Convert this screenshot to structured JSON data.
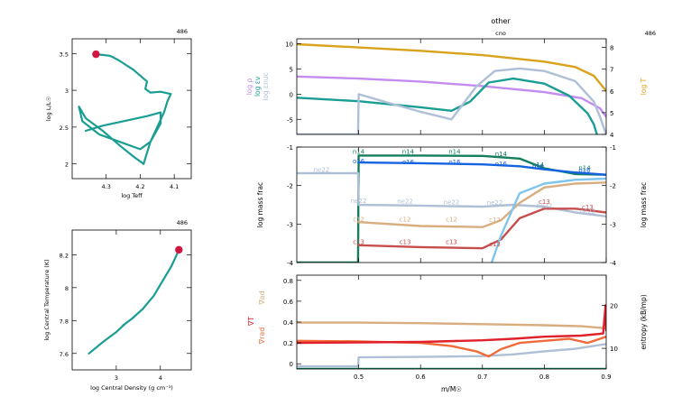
{
  "model_number": "486",
  "colors": {
    "teal": "#1a9e94",
    "marker": "#d0173f",
    "violet": "#c28cf0",
    "gold": "#d9a21b",
    "steelblue": "#aebfd6",
    "darkgreen": "#137f5f",
    "blue": "#1563e0",
    "lightblue": "#7fc5ec",
    "tan": "#d8ad80",
    "brick": "#c84e4e",
    "orange": "#f06a3a",
    "red": "#e0202a",
    "grid": "#888888"
  },
  "chart_data": [
    {
      "id": "hr",
      "type": "line",
      "model_label": "486",
      "xlabel": "log Teff",
      "ylabel": "log L/L☉",
      "xlim": [
        4.4,
        4.05
      ],
      "ylim": [
        1.8,
        3.7
      ],
      "xticks": [
        4.3,
        4.2,
        4.1
      ],
      "yticks": [
        2,
        2.5,
        3,
        3.5
      ],
      "track": [
        [
          4.36,
          2.45
        ],
        [
          4.31,
          2.52
        ],
        [
          4.25,
          2.58
        ],
        [
          4.18,
          2.65
        ],
        [
          4.14,
          2.7
        ],
        [
          4.14,
          2.55
        ],
        [
          4.17,
          2.3
        ],
        [
          4.19,
          2.0
        ],
        [
          4.22,
          2.1
        ],
        [
          4.26,
          2.25
        ],
        [
          4.31,
          2.45
        ],
        [
          4.36,
          2.62
        ],
        [
          4.38,
          2.78
        ],
        [
          4.37,
          2.58
        ],
        [
          4.32,
          2.4
        ],
        [
          4.26,
          2.3
        ],
        [
          4.2,
          2.2
        ],
        [
          4.17,
          2.3
        ],
        [
          4.15,
          2.5
        ],
        [
          4.13,
          2.7
        ],
        [
          4.12,
          2.85
        ],
        [
          4.11,
          2.95
        ],
        [
          4.14,
          2.98
        ],
        [
          4.17,
          2.97
        ],
        [
          4.185,
          3.02
        ],
        [
          4.18,
          3.12
        ],
        [
          4.2,
          3.2
        ],
        [
          4.22,
          3.28
        ],
        [
          4.24,
          3.34
        ],
        [
          4.26,
          3.4
        ],
        [
          4.28,
          3.45
        ],
        [
          4.29,
          3.47
        ],
        [
          4.31,
          3.48
        ],
        [
          4.33,
          3.49
        ]
      ],
      "marker": [
        4.33,
        3.49
      ]
    },
    {
      "id": "rho_t",
      "type": "line",
      "model_label": "486",
      "xlabel": "log Central Density (g cm⁻³)",
      "ylabel": "log Central Temperature (K)",
      "xlim": [
        2.0,
        4.7
      ],
      "ylim": [
        7.5,
        8.35
      ],
      "xticks": [
        3,
        4
      ],
      "yticks": [
        7.6,
        7.8,
        8,
        8.2
      ],
      "track": [
        [
          2.38,
          7.6
        ],
        [
          2.7,
          7.67
        ],
        [
          3.0,
          7.73
        ],
        [
          3.2,
          7.78
        ],
        [
          3.4,
          7.82
        ],
        [
          3.3,
          7.8
        ],
        [
          3.15,
          7.77
        ],
        [
          3.35,
          7.81
        ],
        [
          3.6,
          7.87
        ],
        [
          3.85,
          7.95
        ],
        [
          4.05,
          8.04
        ],
        [
          4.25,
          8.13
        ],
        [
          4.37,
          8.2
        ],
        [
          4.42,
          8.23
        ]
      ],
      "marker": [
        4.42,
        8.23
      ]
    },
    {
      "id": "profile_top",
      "type": "line",
      "title": "other",
      "subtitle": "cno",
      "model_label": "486",
      "xlim": [
        0.4,
        0.9
      ],
      "ylim": [
        -8,
        11
      ],
      "yticks": [
        -5,
        0,
        5,
        10
      ],
      "right_ylim": [
        4,
        8.4
      ],
      "right_yticks": [
        4,
        5,
        6,
        7,
        8
      ],
      "left_labels": [
        "log ρ",
        "log εν",
        "log εnuc"
      ],
      "right_label": "log T",
      "series": [
        {
          "name": "log ρ",
          "color_key": "violet",
          "axis": "left",
          "points": [
            [
              0.4,
              3.5
            ],
            [
              0.5,
              3.1
            ],
            [
              0.6,
              2.5
            ],
            [
              0.7,
              1.6
            ],
            [
              0.8,
              0.4
            ],
            [
              0.86,
              -0.8
            ],
            [
              0.89,
              -2.8
            ],
            [
              0.9,
              -4.5
            ]
          ]
        },
        {
          "name": "log εν",
          "color_key": "teal",
          "axis": "left",
          "points": [
            [
              0.4,
              -0.7
            ],
            [
              0.5,
              -1.4
            ],
            [
              0.6,
              -2.6
            ],
            [
              0.65,
              -3.3
            ],
            [
              0.68,
              -1.5
            ],
            [
              0.71,
              2.3
            ],
            [
              0.75,
              3.1
            ],
            [
              0.8,
              2.1
            ],
            [
              0.84,
              -0.3
            ],
            [
              0.87,
              -3.8
            ],
            [
              0.88,
              -6
            ],
            [
              0.885,
              -8
            ]
          ]
        },
        {
          "name": "log εnuc",
          "color_key": "steelblue",
          "axis": "left",
          "points": [
            [
              0.4,
              -8
            ],
            [
              0.499,
              -8
            ],
            [
              0.5,
              0
            ],
            [
              0.55,
              -1.8
            ],
            [
              0.6,
              -3.5
            ],
            [
              0.65,
              -5
            ],
            [
              0.69,
              1.5
            ],
            [
              0.72,
              4.6
            ],
            [
              0.76,
              5.1
            ],
            [
              0.8,
              4.6
            ],
            [
              0.85,
              2.6
            ],
            [
              0.88,
              -1.5
            ],
            [
              0.89,
              -4.5
            ],
            [
              0.9,
              -8
            ]
          ]
        },
        {
          "name": "log T",
          "color_key": "gold",
          "axis": "right",
          "points": [
            [
              0.4,
              8.15
            ],
            [
              0.5,
              8.0
            ],
            [
              0.6,
              7.85
            ],
            [
              0.7,
              7.65
            ],
            [
              0.8,
              7.35
            ],
            [
              0.85,
              7.1
            ],
            [
              0.88,
              6.7
            ],
            [
              0.9,
              6.0
            ]
          ]
        }
      ]
    },
    {
      "id": "profile_mid",
      "type": "line",
      "ylabel": "log mass frac",
      "right_ylabel": "log mass frac",
      "xlim": [
        0.4,
        0.9
      ],
      "ylim": [
        -4,
        -1
      ],
      "yticks": [
        -4,
        -3,
        -2,
        -1
      ],
      "series": [
        {
          "name": "n14",
          "color_key": "darkgreen",
          "points": [
            [
              0.4,
              -4
            ],
            [
              0.499,
              -4
            ],
            [
              0.5,
              -1.22
            ],
            [
              0.6,
              -1.22
            ],
            [
              0.7,
              -1.23
            ],
            [
              0.76,
              -1.3
            ],
            [
              0.8,
              -1.55
            ],
            [
              0.85,
              -1.7
            ],
            [
              0.9,
              -1.72
            ]
          ]
        },
        {
          "name": "o16",
          "color_key": "blue",
          "points": [
            [
              0.5,
              -1.4
            ],
            [
              0.6,
              -1.42
            ],
            [
              0.7,
              -1.45
            ],
            [
              0.76,
              -1.5
            ],
            [
              0.8,
              -1.58
            ],
            [
              0.85,
              -1.66
            ],
            [
              0.9,
              -1.72
            ]
          ]
        },
        {
          "name": "ne22",
          "color_key": "steelblue",
          "points": [
            [
              0.4,
              -1.68
            ],
            [
              0.499,
              -1.68
            ],
            [
              0.5,
              -2.5
            ],
            [
              0.6,
              -2.52
            ],
            [
              0.7,
              -2.55
            ],
            [
              0.75,
              -2.5
            ],
            [
              0.8,
              -2.55
            ],
            [
              0.85,
              -2.7
            ],
            [
              0.9,
              -2.8
            ]
          ]
        },
        {
          "name": "c12",
          "color_key": "tan",
          "points": [
            [
              0.5,
              -2.95
            ],
            [
              0.6,
              -3.05
            ],
            [
              0.7,
              -3.08
            ],
            [
              0.73,
              -2.9
            ],
            [
              0.76,
              -2.45
            ],
            [
              0.8,
              -2.05
            ],
            [
              0.85,
              -1.95
            ],
            [
              0.9,
              -1.92
            ]
          ]
        },
        {
          "name": "c13",
          "color_key": "brick",
          "points": [
            [
              0.5,
              -3.55
            ],
            [
              0.6,
              -3.6
            ],
            [
              0.7,
              -3.63
            ],
            [
              0.73,
              -3.4
            ],
            [
              0.76,
              -2.85
            ],
            [
              0.8,
              -2.6
            ],
            [
              0.85,
              -2.6
            ],
            [
              0.9,
              -2.7
            ]
          ]
        },
        {
          "name": "",
          "color_key": "lightblue",
          "points": [
            [
              0.715,
              -4
            ],
            [
              0.73,
              -3.3
            ],
            [
              0.76,
              -2.2
            ],
            [
              0.8,
              -1.95
            ],
            [
              0.85,
              -1.85
            ],
            [
              0.9,
              -1.82
            ]
          ]
        }
      ],
      "labels": [
        {
          "text": "n14",
          "color_key": "darkgreen",
          "at": [
            [
              0.5,
              -1.18
            ],
            [
              0.58,
              -1.18
            ],
            [
              0.655,
              -1.18
            ],
            [
              0.73,
              -1.23
            ],
            [
              0.79,
              -1.52
            ],
            [
              0.865,
              -1.6
            ]
          ]
        },
        {
          "text": "o16",
          "color_key": "blue",
          "at": [
            [
              0.5,
              -1.42
            ],
            [
              0.58,
              -1.44
            ],
            [
              0.655,
              -1.45
            ],
            [
              0.73,
              -1.49
            ],
            [
              0.79,
              -1.56
            ],
            [
              0.865,
              -1.66
            ]
          ]
        },
        {
          "text": "ne22",
          "color_key": "steelblue",
          "at": [
            [
              0.44,
              -1.65
            ],
            [
              0.5,
              -2.45
            ],
            [
              0.575,
              -2.47
            ],
            [
              0.65,
              -2.49
            ],
            [
              0.72,
              -2.5
            ],
            [
              0.8,
              -2.58
            ],
            [
              0.87,
              -2.72
            ]
          ]
        },
        {
          "text": "c12",
          "color_key": "tan",
          "at": [
            [
              0.5,
              -2.93
            ],
            [
              0.575,
              -2.93
            ],
            [
              0.65,
              -2.93
            ],
            [
              0.72,
              -2.95
            ]
          ]
        },
        {
          "text": "c13",
          "color_key": "brick",
          "at": [
            [
              0.5,
              -3.52
            ],
            [
              0.575,
              -3.52
            ],
            [
              0.65,
              -3.52
            ],
            [
              0.72,
              -3.58
            ],
            [
              0.8,
              -2.48
            ],
            [
              0.87,
              -2.62
            ]
          ]
        }
      ]
    },
    {
      "id": "profile_bot",
      "type": "line",
      "xlabel": "m/M☉",
      "right_ylabel": "entropy (kB/mp)",
      "left_labels": [
        "∇ad",
        "∇T",
        "∇rad"
      ],
      "xlim": [
        0.4,
        0.9
      ],
      "ylim": [
        -0.05,
        0.85
      ],
      "yticks": [
        0,
        0.2,
        0.4,
        0.6,
        0.8
      ],
      "right_ylim": [
        5.2,
        27
      ],
      "right_yticks": [
        10,
        20
      ],
      "xticks": [
        0.5,
        0.6,
        0.7,
        0.8,
        0.9
      ],
      "series": [
        {
          "name": "∇ad",
          "color_key": "tan",
          "points": [
            [
              0.4,
              0.395
            ],
            [
              0.5,
              0.395
            ],
            [
              0.6,
              0.39
            ],
            [
              0.7,
              0.38
            ],
            [
              0.8,
              0.37
            ],
            [
              0.86,
              0.36
            ],
            [
              0.9,
              0.34
            ]
          ]
        },
        {
          "name": "entropy",
          "color_key": "steelblue",
          "axis": "right",
          "points": [
            [
              0.4,
              5.8
            ],
            [
              0.499,
              5.8
            ],
            [
              0.5,
              7.9
            ],
            [
              0.6,
              8.0
            ],
            [
              0.65,
              8.1
            ],
            [
              0.7,
              8.2
            ],
            [
              0.75,
              8.6
            ],
            [
              0.8,
              9.3
            ],
            [
              0.85,
              9.9
            ],
            [
              0.9,
              11
            ]
          ]
        },
        {
          "name": "∇rad",
          "color_key": "orange",
          "points": [
            [
              0.4,
              0.22
            ],
            [
              0.5,
              0.215
            ],
            [
              0.6,
              0.2
            ],
            [
              0.65,
              0.17
            ],
            [
              0.69,
              0.12
            ],
            [
              0.71,
              0.07
            ],
            [
              0.73,
              0.14
            ],
            [
              0.76,
              0.2
            ],
            [
              0.8,
              0.22
            ],
            [
              0.84,
              0.24
            ],
            [
              0.87,
              0.2
            ],
            [
              0.9,
              0.26
            ]
          ]
        },
        {
          "name": "∇T",
          "color_key": "red",
          "points": [
            [
              0.4,
              0.2
            ],
            [
              0.5,
              0.205
            ],
            [
              0.6,
              0.21
            ],
            [
              0.7,
              0.225
            ],
            [
              0.75,
              0.24
            ],
            [
              0.8,
              0.26
            ],
            [
              0.86,
              0.27
            ],
            [
              0.895,
              0.29
            ],
            [
              0.899,
              0.56
            ],
            [
              0.9,
              0.32
            ]
          ]
        },
        {
          "name": "",
          "color_key": "darkgreen",
          "points": [
            [
              0.4,
              -0.05
            ],
            [
              0.9,
              -0.05
            ]
          ]
        }
      ]
    }
  ]
}
